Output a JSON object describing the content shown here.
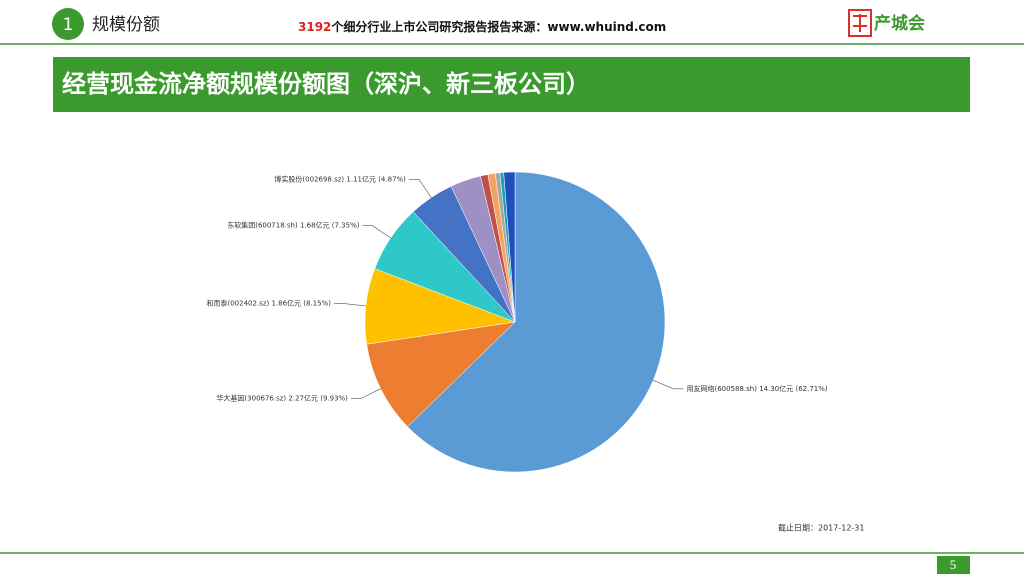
{
  "header": {
    "section_number": "1",
    "section_title": "规模份额",
    "source_count": "3192",
    "source_text": "个细分行业上市公司研究报告报告来源：www.whuind.com",
    "logo_text": "产城会"
  },
  "chart_data": {
    "type": "pie",
    "title": "经营现金流净额规模份额图（深沪、新三板公司）",
    "categories": [
      "用友网络(600588.sh)",
      "华大基因(300676.sz)",
      "和而泰(002402.sz)",
      "东软集团(600718.sh)",
      "博实股份(002698.sz)",
      null,
      null,
      null,
      null,
      null,
      null
    ],
    "values": [
      62.71,
      9.93,
      8.15,
      7.35,
      4.87,
      3.3,
      0.8,
      0.8,
      0.5,
      0.4,
      1.2
    ],
    "value_labels": [
      "14.30亿元 (62.71%)",
      "2.27亿元 (9.93%)",
      "1.86亿元 (8.15%)",
      "1.68亿元 (7.35%)",
      "1.11亿元 (4.87%)",
      null,
      null,
      null,
      null,
      null,
      null
    ],
    "colors": [
      "#5b9bd5",
      "#ed7d31",
      "#ffc000",
      "#2ec8c8",
      "#4472c4",
      "#9e8fc4",
      "#c0504d",
      "#f4a460",
      "#a5a5a5",
      "#17a2b8",
      "#1f4fbf"
    ],
    "note": "截止日期：2017-12-31"
  },
  "footer": {
    "page_number": "5"
  }
}
